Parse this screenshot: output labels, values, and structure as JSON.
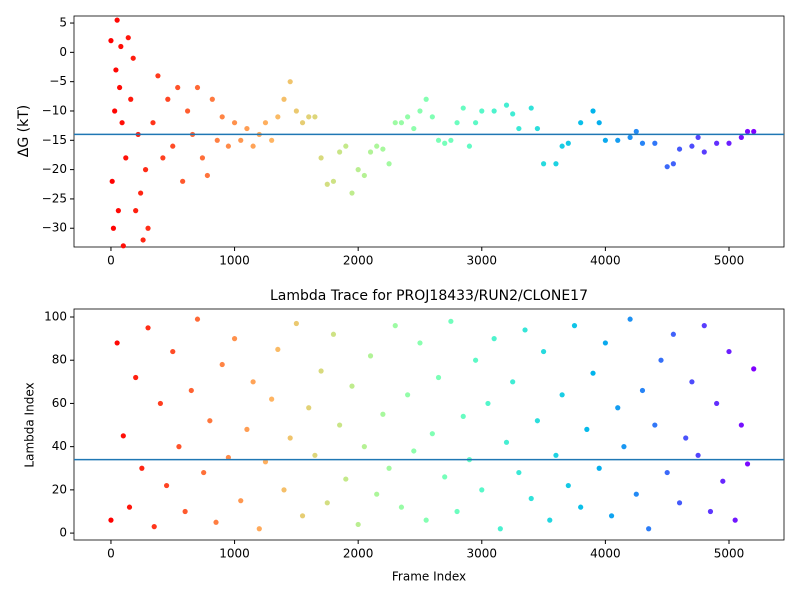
{
  "chart_data": [
    {
      "type": "scatter",
      "ylabel": "ΔG (kT)",
      "colormap": "rainbow_r",
      "hline": -14,
      "hline_color": "#1f77b4",
      "x": [
        0,
        10,
        20,
        30,
        40,
        50,
        60,
        70,
        80,
        90,
        100,
        120,
        140,
        160,
        180,
        200,
        220,
        240,
        260,
        280,
        300,
        340,
        380,
        420,
        460,
        500,
        540,
        580,
        620,
        660,
        700,
        740,
        780,
        820,
        860,
        900,
        950,
        1000,
        1050,
        1100,
        1150,
        1200,
        1250,
        1300,
        1350,
        1400,
        1450,
        1500,
        1550,
        1600,
        1650,
        1700,
        1750,
        1800,
        1850,
        1900,
        1950,
        2000,
        2050,
        2100,
        2150,
        2200,
        2250,
        2300,
        2350,
        2400,
        2450,
        2500,
        2550,
        2600,
        2650,
        2700,
        2750,
        2800,
        2850,
        2900,
        2950,
        3000,
        3100,
        3200,
        3250,
        3300,
        3400,
        3450,
        3500,
        3600,
        3650,
        3700,
        3800,
        3900,
        3950,
        4000,
        4100,
        4200,
        4250,
        4300,
        4400,
        4500,
        4550,
        4600,
        4700,
        4750,
        4800,
        4900,
        5000,
        5100,
        5150,
        5200
      ],
      "values": [
        2,
        -22,
        -30,
        -10,
        -3,
        5.5,
        -27,
        -6,
        1,
        -12,
        -33,
        -18,
        2.5,
        -8,
        -1,
        -27,
        -14,
        -24,
        -32,
        -20,
        -30,
        -12,
        -4,
        -18,
        -8,
        -16,
        -6,
        -22,
        -10,
        -14,
        -6,
        -18,
        -21,
        -8,
        -15,
        -11,
        -16,
        -12,
        -15,
        -13,
        -16,
        -14,
        -12,
        -15,
        -11,
        -8,
        -5,
        -10,
        -12,
        -11,
        -11,
        -18,
        -22.5,
        -22,
        -17,
        -16,
        -24,
        -20,
        -21,
        -17,
        -16,
        -16.5,
        -19,
        -12,
        -12,
        -11,
        -13,
        -10,
        -8,
        -11,
        -15,
        -15.5,
        -15,
        -12,
        -9.5,
        -16,
        -12,
        -10,
        -10,
        -9,
        -10.5,
        -13,
        -9.5,
        -13,
        -19,
        -19,
        -16,
        -15.5,
        -12,
        -10,
        -12,
        -15,
        -15,
        -14.5,
        -13.5,
        -15.5,
        -15.5,
        -19.5,
        -19,
        -16.5,
        -16,
        -14.5,
        -17,
        -15.5,
        -15.5,
        -14.5,
        -13.5,
        -13.5
      ],
      "xlim": [
        -299,
        5445
      ],
      "xticks": [
        0,
        1000,
        2000,
        3000,
        4000,
        5000
      ],
      "ylim": [
        -33.2,
        6.2
      ],
      "yticks": [
        {
          "value": -30,
          "label": "−30"
        },
        {
          "value": -25,
          "label": "−25"
        },
        {
          "value": -20,
          "label": "−20"
        },
        {
          "value": -15,
          "label": "−15"
        },
        {
          "value": -10,
          "label": "−10"
        },
        {
          "value": -5,
          "label": "−5"
        },
        0,
        5
      ]
    },
    {
      "type": "scatter",
      "title": "Lambda Trace for PROJ18433/RUN2/CLONE17",
      "xlabel": "Frame Index",
      "ylabel": "Lambda Index",
      "colormap": "rainbow_r",
      "hline": 34,
      "hline_color": "#1f77b4",
      "x": [
        0,
        50,
        100,
        150,
        200,
        250,
        300,
        350,
        400,
        450,
        500,
        550,
        600,
        650,
        700,
        750,
        800,
        850,
        900,
        950,
        1000,
        1050,
        1100,
        1150,
        1200,
        1250,
        1300,
        1350,
        1400,
        1450,
        1500,
        1550,
        1600,
        1650,
        1700,
        1750,
        1800,
        1850,
        1900,
        1950,
        2000,
        2050,
        2100,
        2150,
        2200,
        2250,
        2300,
        2350,
        2400,
        2450,
        2500,
        2550,
        2600,
        2650,
        2700,
        2750,
        2800,
        2850,
        2900,
        2950,
        3000,
        3050,
        3100,
        3150,
        3200,
        3250,
        3300,
        3350,
        3400,
        3450,
        3500,
        3550,
        3600,
        3650,
        3700,
        3750,
        3800,
        3850,
        3900,
        3950,
        4000,
        4050,
        4100,
        4150,
        4200,
        4250,
        4300,
        4350,
        4400,
        4450,
        4500,
        4550,
        4600,
        4650,
        4700,
        4750,
        4800,
        4850,
        4900,
        4950,
        5000,
        5050,
        5100,
        5150,
        5200
      ],
      "values": [
        6,
        88,
        45,
        12,
        72,
        30,
        95,
        3,
        60,
        22,
        84,
        40,
        10,
        66,
        99,
        28,
        52,
        5,
        78,
        35,
        90,
        15,
        48,
        70,
        2,
        33,
        62,
        85,
        20,
        44,
        97,
        8,
        58,
        36,
        75,
        14,
        92,
        50,
        25,
        68,
        4,
        40,
        82,
        18,
        55,
        30,
        96,
        12,
        64,
        38,
        88,
        6,
        46,
        72,
        26,
        98,
        10,
        54,
        34,
        80,
        20,
        60,
        90,
        2,
        42,
        70,
        28,
        94,
        16,
        52,
        84,
        6,
        36,
        64,
        22,
        96,
        12,
        48,
        74,
        30,
        88,
        8,
        58,
        40,
        99,
        18,
        66,
        2,
        50,
        80,
        28,
        92,
        14,
        44,
        70,
        36,
        96,
        10,
        60,
        24,
        84,
        6,
        50,
        32,
        76
      ],
      "xlim": [
        -299,
        5445
      ],
      "xticks": [
        0,
        1000,
        2000,
        3000,
        4000,
        5000
      ],
      "ylim": [
        -3.2,
        103.7
      ],
      "yticks": [
        0,
        20,
        40,
        60,
        80,
        100
      ]
    }
  ]
}
